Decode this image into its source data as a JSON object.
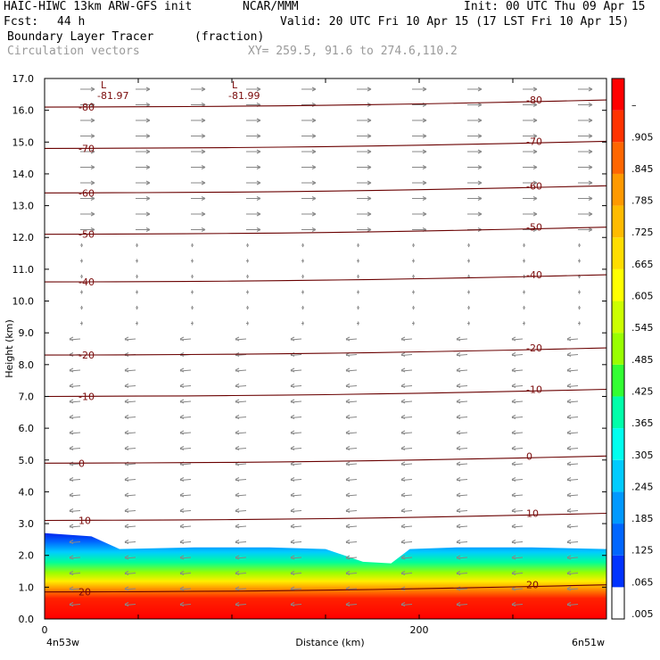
{
  "header": {
    "model": "HAIC-HIWC 13km ARW-GFS init",
    "org": "NCAR/MMM",
    "init": "Init: 00 UTC Thu 09 Apr 15",
    "fcst_label": "Fcst:",
    "fcst_value": "44 h",
    "valid": "Valid: 20 UTC Fri 10 Apr 15 (17 LST Fri 10 Apr 15)",
    "field1": "Boundary Layer Tracer",
    "field1_units": "(fraction)",
    "field2": "Circulation vectors",
    "xy": "XY= 259.5, 91.6 to 274.6,110.2"
  },
  "chart_data": {
    "type": "heatmap",
    "ylabel": "Height (km)",
    "xlabel": "Distance (km)",
    "ylim": [
      0.0,
      17.0
    ],
    "xlim": [
      0,
      300
    ],
    "yticks": [
      "0.0",
      "1.0",
      "2.0",
      "3.0",
      "4.0",
      "5.0",
      "6.0",
      "7.0",
      "8.0",
      "9.0",
      "10.0",
      "11.0",
      "12.0",
      "13.0",
      "14.0",
      "15.0",
      "16.0",
      "17.0"
    ],
    "xticks": [
      {
        "x": 0,
        "label": "0"
      },
      {
        "x": 200,
        "label": "200"
      }
    ],
    "left_end_label": "4n53w",
    "right_end_label": "6n51w",
    "colorbar": {
      "labels": [
        ".005",
        ".065",
        ".125",
        ".185",
        ".245",
        ".305",
        ".365",
        ".425",
        ".485",
        ".545",
        ".605",
        ".665",
        ".725",
        ".785",
        ".845",
        ".905",
        "–"
      ],
      "colors": [
        "#ffffff",
        "#0033ff",
        "#0066ff",
        "#0099ff",
        "#00ccff",
        "#00ffee",
        "#00ffaa",
        "#33ff33",
        "#99ff00",
        "#ccff00",
        "#ffff00",
        "#ffdd00",
        "#ffbb00",
        "#ff9900",
        "#ff6600",
        "#ff3300",
        "#ff0000"
      ]
    },
    "temperature_contours": [
      {
        "label": "-80",
        "height_km": 16.1
      },
      {
        "label": "-70",
        "height_km": 14.8
      },
      {
        "label": "-60",
        "height_km": 13.4
      },
      {
        "label": "-50",
        "height_km": 12.1
      },
      {
        "label": "-40",
        "height_km": 10.6
      },
      {
        "label": "-20",
        "height_km": 8.3
      },
      {
        "label": "-10",
        "height_km": 7.0
      },
      {
        "label": "0",
        "height_km": 4.9
      },
      {
        "label": "10",
        "height_km": 3.1
      },
      {
        "label": "20",
        "height_km": 0.85
      }
    ],
    "minima": [
      {
        "marker": "L",
        "value": "-81.97",
        "x": 30
      },
      {
        "marker": "L",
        "value": "-81.99",
        "x": 100
      }
    ],
    "tracer_top_km": [
      {
        "x": 0,
        "top": 2.7
      },
      {
        "x": 25,
        "top": 2.6
      },
      {
        "x": 40,
        "top": 2.2
      },
      {
        "x": 80,
        "top": 2.25
      },
      {
        "x": 120,
        "top": 2.25
      },
      {
        "x": 150,
        "top": 2.2
      },
      {
        "x": 170,
        "top": 1.8
      },
      {
        "x": 185,
        "top": 1.75
      },
      {
        "x": 195,
        "top": 2.2
      },
      {
        "x": 220,
        "top": 2.25
      },
      {
        "x": 260,
        "top": 2.25
      },
      {
        "x": 300,
        "top": 2.2
      }
    ]
  }
}
